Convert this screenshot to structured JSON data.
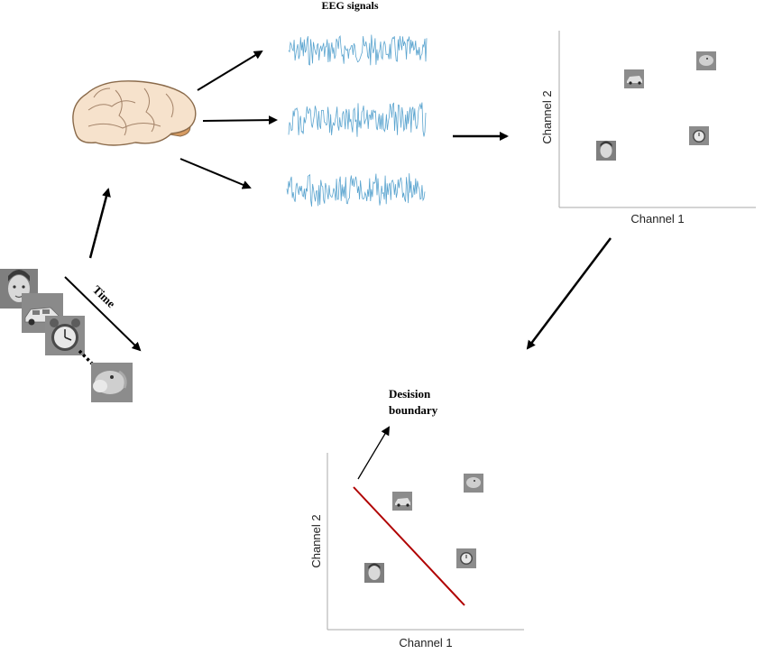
{
  "eeg": {
    "title": "EEG signals"
  },
  "time": {
    "label": "Time"
  },
  "scatter_top": {
    "xlabel": "Channel 1",
    "ylabel": "Channel 2"
  },
  "scatter_bottom": {
    "xlabel": "Channel 1",
    "ylabel": "Channel 2"
  },
  "boundary": {
    "label_line1": "Desision",
    "label_line2": "boundary"
  },
  "stimuli": [
    {
      "icon": "face-stimulus-icon"
    },
    {
      "icon": "car-stimulus-icon"
    },
    {
      "icon": "clock-stimulus-icon"
    },
    {
      "icon": "monkey-stimulus-icon"
    }
  ],
  "colors": {
    "eeg_wave": "#5aa4cf",
    "brain_fill": "#f6e2cc",
    "brain_stroke": "#8a6a4a",
    "brainstem": "#d69b62",
    "boundary_line": "#b00000",
    "stimulus_bg": "#8c8c8c"
  }
}
